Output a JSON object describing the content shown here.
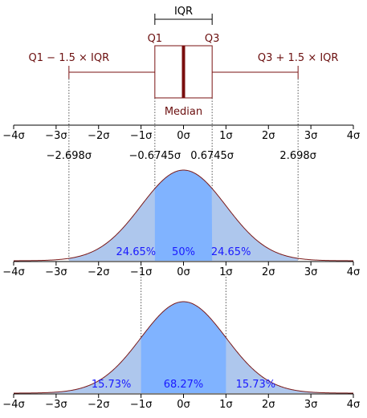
{
  "colors": {
    "box": "#7a1212",
    "median": "#7a0d0d",
    "curve": "#7a1a1a",
    "central_fill": "#80b3ff",
    "tail_fill": "#aec7ed",
    "percent_text": "#1a1aff",
    "axis": "#000000"
  },
  "boxplot": {
    "iqr_label": "IQR",
    "q1_label": "Q1",
    "q3_label": "Q3",
    "median_label": "Median",
    "lower_whisker_label": "Q1 − 1.5 × IQR",
    "upper_whisker_label": "Q3 + 1.5 × IQR",
    "q1": -0.6745,
    "q3": 0.6745,
    "median": 0,
    "lower_whisker": -2.698,
    "upper_whisker": 2.698
  },
  "axis": {
    "range": [
      -4,
      4
    ],
    "ticks": [
      -4,
      -3,
      -2,
      -1,
      0,
      1,
      2,
      3,
      4
    ],
    "tick_labels": [
      "−4σ",
      "−3σ",
      "−2σ",
      "−1σ",
      "0σ",
      "1σ",
      "2σ",
      "3σ",
      "4σ"
    ]
  },
  "quantile_labels": [
    {
      "value": -2.698,
      "label": "−2.698σ"
    },
    {
      "value": -0.6745,
      "label": "−0.6745σ"
    },
    {
      "value": 0.6745,
      "label": "0.6745σ"
    },
    {
      "value": 2.698,
      "label": "2.698σ"
    }
  ],
  "density_top": {
    "central_range": [
      -0.6745,
      0.6745
    ],
    "tail_range": [
      -2.698,
      2.698
    ],
    "left_percent": "24.65%",
    "center_percent": "50%",
    "right_percent": "24.65%"
  },
  "density_bottom": {
    "central_range": [
      -1,
      1
    ],
    "left_percent": "15.73%",
    "center_percent": "68.27%",
    "right_percent": "15.73%"
  }
}
